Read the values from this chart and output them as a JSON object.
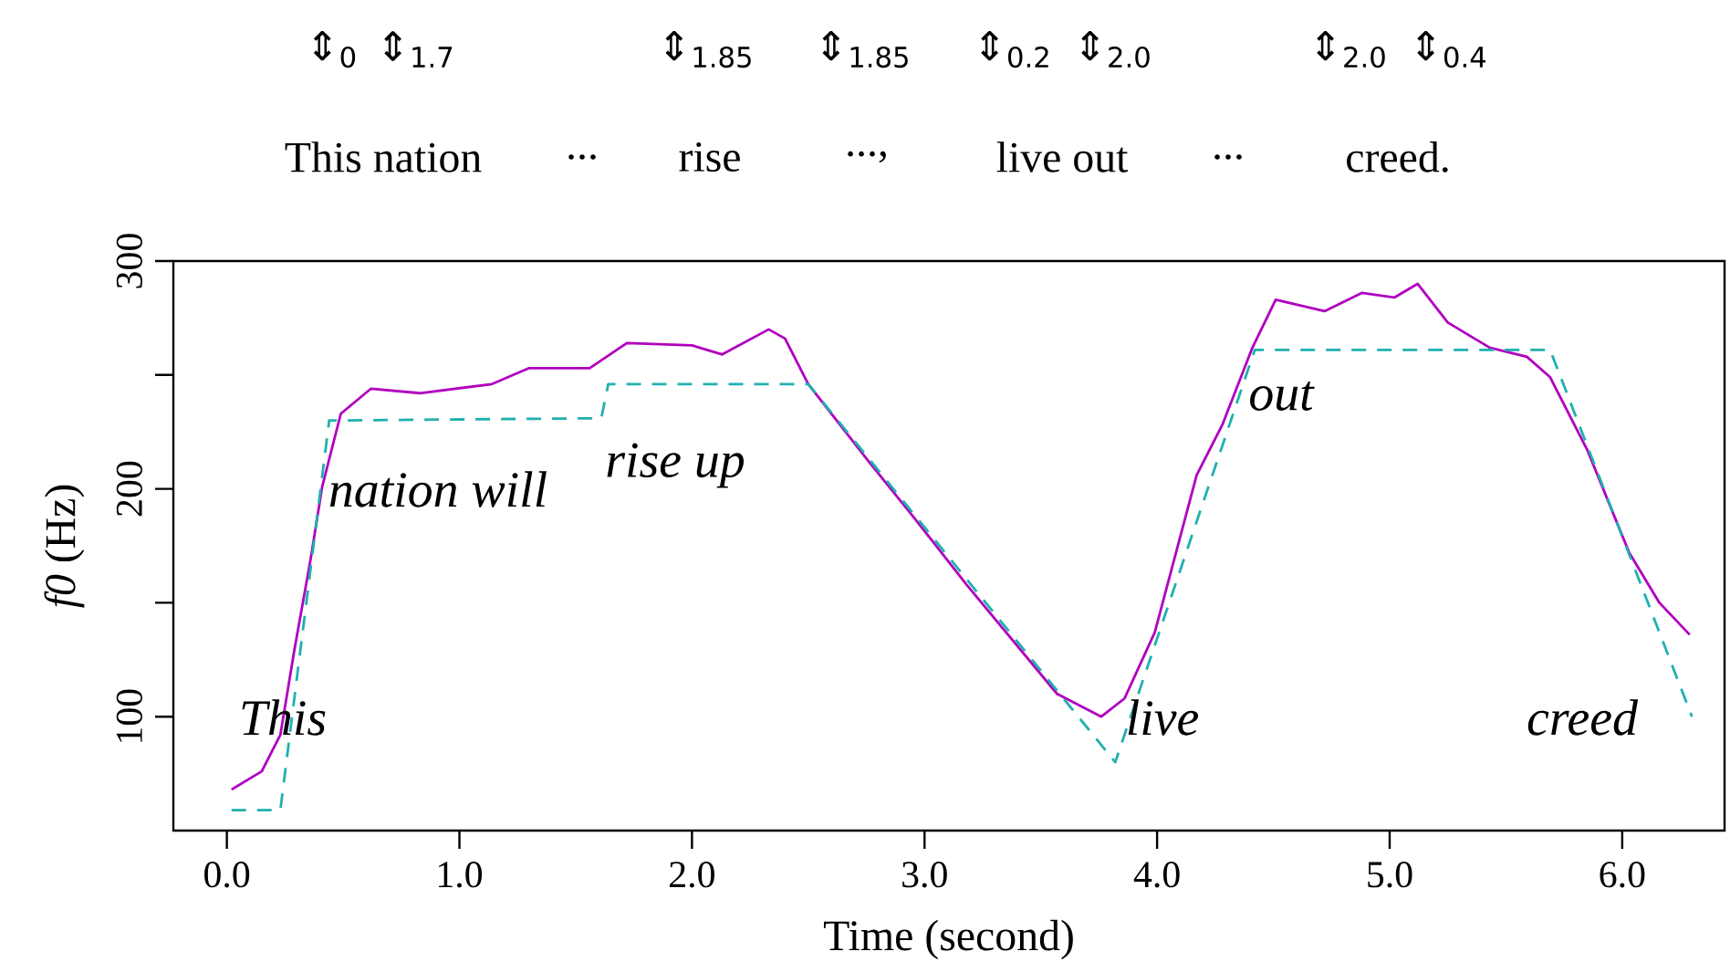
{
  "chart_data": {
    "type": "line",
    "xlabel": "Time (second)",
    "ylabel": "*f0* (Hz)",
    "xlim": [
      -0.23,
      6.44
    ],
    "ylim": [
      50,
      300
    ],
    "xticks": [
      {
        "value": 0,
        "label": "0.0"
      },
      {
        "value": 1,
        "label": "1.0"
      },
      {
        "value": 2,
        "label": "2.0"
      },
      {
        "value": 3,
        "label": "3.0"
      },
      {
        "value": 4,
        "label": "4.0"
      },
      {
        "value": 5,
        "label": "5.0"
      },
      {
        "value": 6,
        "label": "6.0"
      }
    ],
    "yticks": [
      100,
      {
        "value": 150,
        "label": null
      },
      200,
      {
        "value": 250,
        "label": null
      },
      300
    ],
    "grid": false,
    "marker": "none",
    "series": [
      {
        "color": "#b000c0",
        "line_style": "solid",
        "x": [
          0.02,
          0.15,
          0.23,
          0.29,
          0.36,
          0.41,
          0.49,
          0.62,
          0.83,
          1.14,
          1.3,
          1.56,
          1.72,
          2.0,
          2.13,
          2.33,
          2.4,
          2.5,
          2.76,
          2.95,
          3.18,
          3.57,
          3.76,
          3.86,
          3.99,
          4.17,
          4.28,
          4.41,
          4.51,
          4.72,
          4.88,
          5.02,
          5.12,
          5.25,
          5.43,
          5.59,
          5.69,
          5.85,
          6.03,
          6.16,
          6.29
        ],
        "values": [
          68,
          76,
          92,
          129,
          169,
          201,
          233,
          244,
          242,
          246,
          253,
          253,
          264,
          263,
          259,
          270,
          266,
          246,
          212,
          188,
          158,
          110,
          100,
          108,
          137,
          206,
          228,
          262,
          283,
          278,
          286,
          284,
          290,
          273,
          262,
          258,
          249,
          217,
          172,
          150,
          136
        ]
      },
      {
        "color": "#20b0b0",
        "line_style": "dashed",
        "x": [
          0.02,
          0.23,
          0.44,
          1.61,
          1.64,
          2.5,
          3.82,
          4.42,
          5.69,
          6.3
        ],
        "values": [
          59,
          59,
          230,
          231,
          246,
          246,
          80,
          261,
          261,
          100
        ]
      }
    ],
    "annotations": [
      "This",
      "nation will",
      "rise up",
      "live",
      "out",
      "creed",
      "⇕$_{0}$",
      "⇕$_{1.7}$",
      "⇕$_{1.85}$",
      "⇕$_{1.85}$",
      "⇕$_{0.2}$",
      "⇕$_{2.0}$",
      "⇕$_{2.0}$",
      "⇕$_{0.4}$",
      "This nation",
      "...",
      "rise",
      "...,",
      "live out",
      "...",
      "creed."
    ]
  }
}
